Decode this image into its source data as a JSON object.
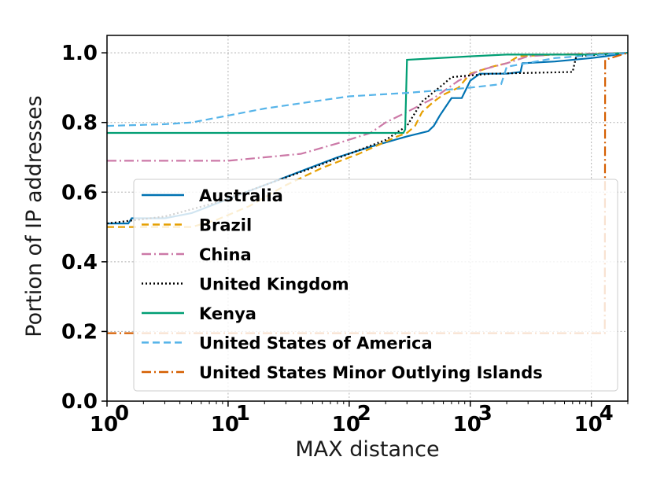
{
  "chart_data": {
    "type": "line",
    "title": "",
    "xlabel": "MAX distance",
    "ylabel": "Portion of IP addresses",
    "xscale": "log",
    "xlim": [
      1,
      20000
    ],
    "ylim": [
      0,
      1.05
    ],
    "grid": true,
    "legend_position": "lower-center",
    "x_ticks": [
      {
        "value": 1,
        "base": "10",
        "exp": "0"
      },
      {
        "value": 10,
        "base": "10",
        "exp": "1"
      },
      {
        "value": 100,
        "base": "10",
        "exp": "2"
      },
      {
        "value": 1000,
        "base": "10",
        "exp": "3"
      },
      {
        "value": 10000,
        "base": "10",
        "exp": "4"
      }
    ],
    "y_ticks": [
      {
        "value": 0,
        "label": "0.0"
      },
      {
        "value": 0.2,
        "label": "0.2"
      },
      {
        "value": 0.4,
        "label": "0.4"
      },
      {
        "value": 0.6,
        "label": "0.6"
      },
      {
        "value": 0.8,
        "label": "0.8"
      },
      {
        "value": 1.0,
        "label": "1.0"
      }
    ],
    "series": [
      {
        "name": "Australia",
        "color": "#0072b2",
        "dash": "solid",
        "points": [
          [
            1,
            0.51
          ],
          [
            1.5,
            0.51
          ],
          [
            1.6,
            0.525
          ],
          [
            3,
            0.525
          ],
          [
            5,
            0.54
          ],
          [
            10,
            0.58
          ],
          [
            20,
            0.62
          ],
          [
            40,
            0.66
          ],
          [
            80,
            0.7
          ],
          [
            150,
            0.73
          ],
          [
            300,
            0.76
          ],
          [
            450,
            0.775
          ],
          [
            500,
            0.79
          ],
          [
            560,
            0.82
          ],
          [
            700,
            0.87
          ],
          [
            850,
            0.87
          ],
          [
            1000,
            0.92
          ],
          [
            1200,
            0.94
          ],
          [
            2000,
            0.94
          ],
          [
            2600,
            0.945
          ],
          [
            2700,
            0.97
          ],
          [
            5000,
            0.975
          ],
          [
            10000,
            0.985
          ],
          [
            13000,
            0.99
          ],
          [
            20000,
            1.0
          ]
        ]
      },
      {
        "name": "Brazil",
        "color": "#e69f00",
        "dash": "dashed",
        "points": [
          [
            1,
            0.5
          ],
          [
            5,
            0.5
          ],
          [
            8,
            0.52
          ],
          [
            15,
            0.56
          ],
          [
            30,
            0.62
          ],
          [
            60,
            0.67
          ],
          [
            120,
            0.71
          ],
          [
            250,
            0.76
          ],
          [
            300,
            0.77
          ],
          [
            350,
            0.79
          ],
          [
            400,
            0.83
          ],
          [
            500,
            0.86
          ],
          [
            600,
            0.88
          ],
          [
            800,
            0.9
          ],
          [
            1000,
            0.94
          ],
          [
            1500,
            0.96
          ],
          [
            2000,
            0.97
          ],
          [
            2500,
            0.99
          ],
          [
            5000,
            0.995
          ],
          [
            20000,
            1.0
          ]
        ]
      },
      {
        "name": "China",
        "color": "#cc79a7",
        "dash": "dashdot",
        "points": [
          [
            1,
            0.69
          ],
          [
            10,
            0.69
          ],
          [
            20,
            0.7
          ],
          [
            40,
            0.71
          ],
          [
            80,
            0.74
          ],
          [
            150,
            0.77
          ],
          [
            200,
            0.8
          ],
          [
            300,
            0.83
          ],
          [
            500,
            0.87
          ],
          [
            800,
            0.92
          ],
          [
            1200,
            0.95
          ],
          [
            2000,
            0.97
          ],
          [
            3000,
            0.99
          ],
          [
            5000,
            0.995
          ],
          [
            20000,
            1.0
          ]
        ]
      },
      {
        "name": "United Kingdom",
        "color": "#000000",
        "dash": "dotted",
        "points": [
          [
            1,
            0.51
          ],
          [
            3,
            0.53
          ],
          [
            8,
            0.57
          ],
          [
            20,
            0.62
          ],
          [
            50,
            0.67
          ],
          [
            100,
            0.71
          ],
          [
            200,
            0.75
          ],
          [
            300,
            0.79
          ],
          [
            400,
            0.86
          ],
          [
            600,
            0.91
          ],
          [
            700,
            0.93
          ],
          [
            1000,
            0.935
          ],
          [
            1500,
            0.94
          ],
          [
            7000,
            0.945
          ],
          [
            7500,
            0.99
          ],
          [
            20000,
            1.0
          ]
        ]
      },
      {
        "name": "Kenya",
        "color": "#009e73",
        "dash": "solid",
        "points": [
          [
            1,
            0.77
          ],
          [
            280,
            0.77
          ],
          [
            290,
            0.78
          ],
          [
            300,
            0.98
          ],
          [
            1000,
            0.99
          ],
          [
            2000,
            0.995
          ],
          [
            10000,
            0.995
          ],
          [
            20000,
            1.0
          ]
        ]
      },
      {
        "name": "United States of America",
        "color": "#56b4e9",
        "dash": "dashed",
        "points": [
          [
            1,
            0.79
          ],
          [
            3,
            0.795
          ],
          [
            5,
            0.8
          ],
          [
            10,
            0.82
          ],
          [
            20,
            0.84
          ],
          [
            50,
            0.86
          ],
          [
            100,
            0.875
          ],
          [
            300,
            0.885
          ],
          [
            700,
            0.895
          ],
          [
            1000,
            0.9
          ],
          [
            1800,
            0.91
          ],
          [
            2000,
            0.96
          ],
          [
            5000,
            0.985
          ],
          [
            20000,
            1.0
          ]
        ]
      },
      {
        "name": "United States Minor Outlying Islands",
        "color": "#d55e00",
        "dash": "dashdot",
        "points": [
          [
            1,
            0.195
          ],
          [
            12900,
            0.195
          ],
          [
            13000,
            0.98
          ],
          [
            20000,
            1.0
          ]
        ]
      }
    ]
  }
}
